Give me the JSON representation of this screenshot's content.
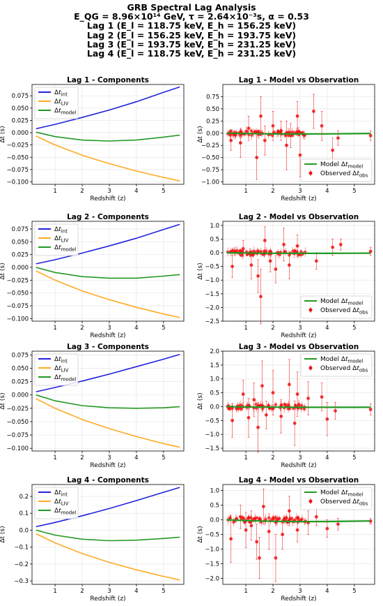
{
  "suptitle": {
    "line1": "GRB Spectral Lag Analysis",
    "line2": "E_QG = 8.96×10¹⁴ GeV, τ = 2.64×10⁻³s, α = 0.53",
    "line3": "Lag 1 (E_l = 118.75 keV, E_h = 156.25 keV)",
    "line4": "Lag 2 (E_l = 156.25 keV, E_h = 193.75 keV)",
    "line5": "Lag 3 (E_l = 193.75 keV, E_h = 231.25 keV)",
    "line6": "Lag 4 (E_l = 118.75 keV, E_h = 231.25 keV)"
  },
  "colors": {
    "int": "#2222dd",
    "liv": "#ffaa22",
    "model": "#229922",
    "obs": "#ee1111"
  },
  "chart_data": [
    {
      "type": "line",
      "title": "Lag 1 - Components",
      "xlabel": "Redshift (z)",
      "ylabel": "Δt (s)",
      "xlim": [
        0.15,
        5.75
      ],
      "ylim": [
        -0.105,
        0.098
      ],
      "xticks": [
        1,
        2,
        3,
        4,
        5
      ],
      "yticks": [
        -0.1,
        -0.075,
        -0.05,
        -0.025,
        0.0,
        0.025,
        0.05,
        0.075
      ],
      "ytick_labels": [
        "−0.100",
        "−0.075",
        "−0.050",
        "−0.025",
        "0.000",
        "0.025",
        "0.050",
        "0.075"
      ],
      "grid": true,
      "legend": "upper-left",
      "x": [
        0.3,
        1.0,
        2.0,
        3.0,
        4.0,
        5.0,
        5.6
      ],
      "series": [
        {
          "name": "Δt_int",
          "color": "int",
          "values": [
            0.008,
            0.017,
            0.031,
            0.046,
            0.063,
            0.082,
            0.093
          ]
        },
        {
          "name": "Δt_LIV",
          "color": "liv",
          "values": [
            -0.007,
            -0.025,
            -0.046,
            -0.063,
            -0.078,
            -0.091,
            -0.098
          ]
        },
        {
          "name": "Δt_model",
          "color": "model",
          "values": [
            0.001,
            -0.008,
            -0.015,
            -0.017,
            -0.015,
            -0.009,
            -0.005
          ]
        }
      ]
    },
    {
      "type": "scatter",
      "title": "Lag 1 - Model vs Observation",
      "xlabel": "Redshift (z)",
      "ylabel": "Δt (s)",
      "xlim": [
        0.15,
        5.75
      ],
      "ylim": [
        -1.05,
        1.0
      ],
      "xticks": [
        1,
        2,
        3,
        4,
        5
      ],
      "yticks": [
        -1.0,
        -0.75,
        -0.5,
        -0.25,
        0.0,
        0.25,
        0.5,
        0.75
      ],
      "ytick_labels": [
        "−1.00",
        "−0.75",
        "−0.50",
        "−0.25",
        "0.00",
        "0.25",
        "0.50",
        "0.75"
      ],
      "grid": true,
      "legend": "lower-right",
      "model": {
        "name": "Model Δt_model",
        "x": [
          0.3,
          1.0,
          2.0,
          3.0,
          4.0,
          5.0,
          5.6
        ],
        "values": [
          0.001,
          -0.008,
          -0.015,
          -0.017,
          -0.015,
          -0.009,
          -0.005
        ]
      },
      "observed": {
        "name": "Observed Δt_obs",
        "seed": 11,
        "x": [
          0.45,
          0.8,
          1.1,
          1.4,
          1.55,
          1.7,
          2.0,
          2.3,
          2.5,
          2.65,
          2.9,
          3.0,
          3.5,
          3.8,
          4.2,
          4.4,
          5.6
        ],
        "y": [
          -0.15,
          -0.2,
          0.1,
          -0.5,
          0.35,
          -0.15,
          0.15,
          0.05,
          -0.25,
          -0.05,
          0.35,
          -0.45,
          0.45,
          0.15,
          -0.35,
          -0.1,
          -0.05
        ],
        "err": [
          0.2,
          0.3,
          0.25,
          0.45,
          0.4,
          0.3,
          0.3,
          0.2,
          0.5,
          0.25,
          0.3,
          0.45,
          0.35,
          0.3,
          0.25,
          0.15,
          0.1
        ]
      }
    },
    {
      "type": "line",
      "title": "Lag 2 - Components",
      "xlabel": "Redshift (z)",
      "ylabel": "Δt (s)",
      "xlim": [
        0.15,
        5.75
      ],
      "ylim": [
        -0.105,
        0.09
      ],
      "xticks": [
        1,
        2,
        3,
        4,
        5
      ],
      "yticks": [
        -0.1,
        -0.075,
        -0.05,
        -0.025,
        0.0,
        0.025,
        0.05,
        0.075
      ],
      "ytick_labels": [
        "−0.100",
        "−0.075",
        "−0.050",
        "−0.025",
        "0.000",
        "0.025",
        "0.050",
        "0.075"
      ],
      "grid": true,
      "legend": "upper-left",
      "x": [
        0.3,
        1.0,
        2.0,
        3.0,
        4.0,
        5.0,
        5.6
      ],
      "series": [
        {
          "name": "Δt_int",
          "color": "int",
          "values": [
            0.007,
            0.015,
            0.028,
            0.042,
            0.057,
            0.074,
            0.084
          ]
        },
        {
          "name": "Δt_LIV",
          "color": "liv",
          "values": [
            -0.007,
            -0.025,
            -0.046,
            -0.063,
            -0.078,
            -0.091,
            -0.098
          ]
        },
        {
          "name": "Δt_model",
          "color": "model",
          "values": [
            0.0,
            -0.01,
            -0.018,
            -0.021,
            -0.021,
            -0.017,
            -0.014
          ]
        }
      ]
    },
    {
      "type": "scatter",
      "title": "Lag 2 - Model vs Observation",
      "xlabel": "Redshift (z)",
      "ylabel": "Δt (s)",
      "xlim": [
        0.15,
        5.75
      ],
      "ylim": [
        -2.5,
        1.15
      ],
      "xticks": [
        1,
        2,
        3,
        4,
        5
      ],
      "yticks": [
        -2.5,
        -2.0,
        -1.5,
        -1.0,
        -0.5,
        0.0,
        0.5,
        1.0
      ],
      "ytick_labels": [
        "−2.5",
        "−2.0",
        "−1.5",
        "−1.0",
        "−0.5",
        "0.0",
        "0.5",
        "1.0"
      ],
      "grid": true,
      "legend": "lower-right",
      "model": {
        "name": "Model Δt_model",
        "x": [
          0.3,
          1.0,
          2.0,
          3.0,
          4.0,
          5.0,
          5.6
        ],
        "values": [
          0.0,
          -0.01,
          -0.018,
          -0.021,
          -0.021,
          -0.017,
          -0.014
        ]
      },
      "observed": {
        "name": "Observed Δt_obs",
        "seed": 23,
        "x": [
          0.5,
          0.9,
          1.2,
          1.45,
          1.55,
          1.7,
          1.9,
          2.1,
          2.4,
          2.6,
          2.9,
          3.6,
          4.2,
          4.5,
          5.6
        ],
        "y": [
          -0.5,
          0.15,
          -0.45,
          -0.85,
          -1.6,
          0.45,
          -0.3,
          -0.6,
          0.3,
          -0.45,
          0.25,
          -0.3,
          0.2,
          0.3,
          0.05
        ],
        "err": [
          0.4,
          0.3,
          0.5,
          0.6,
          1.0,
          0.5,
          0.4,
          0.5,
          0.6,
          0.5,
          0.4,
          0.3,
          0.3,
          0.2,
          0.15
        ]
      }
    },
    {
      "type": "line",
      "title": "Lag 3 - Components",
      "xlabel": "Redshift (z)",
      "ylabel": "Δt (s)",
      "xlim": [
        0.15,
        5.75
      ],
      "ylim": [
        -0.105,
        0.082
      ],
      "xticks": [
        1,
        2,
        3,
        4,
        5
      ],
      "yticks": [
        -0.1,
        -0.075,
        -0.05,
        -0.025,
        0.0,
        0.025,
        0.05,
        0.075
      ],
      "ytick_labels": [
        "−0.100",
        "−0.075",
        "−0.050",
        "−0.025",
        "0.000",
        "0.025",
        "0.050",
        "0.075"
      ],
      "grid": true,
      "legend": "upper-left",
      "x": [
        0.3,
        1.0,
        2.0,
        3.0,
        4.0,
        5.0,
        5.6
      ],
      "series": [
        {
          "name": "Δt_int",
          "color": "int",
          "values": [
            0.006,
            0.014,
            0.026,
            0.039,
            0.053,
            0.067,
            0.076
          ]
        },
        {
          "name": "Δt_LIV",
          "color": "liv",
          "values": [
            -0.007,
            -0.025,
            -0.046,
            -0.063,
            -0.078,
            -0.091,
            -0.098
          ]
        },
        {
          "name": "Δt_model",
          "color": "model",
          "values": [
            0.0,
            -0.011,
            -0.02,
            -0.024,
            -0.025,
            -0.024,
            -0.022
          ]
        }
      ]
    },
    {
      "type": "scatter",
      "title": "Lag 3 - Model vs Observation",
      "xlabel": "Redshift (z)",
      "ylabel": "Δt (s)",
      "xlim": [
        0.15,
        5.75
      ],
      "ylim": [
        -1.6,
        2.0
      ],
      "xticks": [
        1,
        2,
        3,
        4,
        5
      ],
      "yticks": [
        -1.5,
        -1.0,
        -0.5,
        0.0,
        0.5,
        1.0,
        1.5,
        2.0
      ],
      "ytick_labels": [
        "−1.5",
        "−1.0",
        "−0.5",
        "0.0",
        "0.5",
        "1.0",
        "1.5",
        "2.0"
      ],
      "grid": true,
      "legend": "upper-right",
      "model": {
        "name": "Model Δt_model",
        "x": [
          0.3,
          1.0,
          2.0,
          3.0,
          4.0,
          5.0,
          5.6
        ],
        "values": [
          0.0,
          -0.011,
          -0.02,
          -0.024,
          -0.025,
          -0.024,
          -0.022
        ]
      },
      "observed": {
        "name": "Observed Δt_obs",
        "seed": 37,
        "x": [
          0.5,
          0.9,
          1.1,
          1.3,
          1.45,
          1.6,
          1.75,
          2.0,
          2.3,
          2.6,
          2.8,
          2.9,
          3.3,
          3.8,
          4.0,
          4.3,
          5.6
        ],
        "y": [
          -0.5,
          0.45,
          -0.4,
          0.25,
          -0.75,
          0.75,
          -0.3,
          0.5,
          -0.35,
          0.8,
          -0.6,
          0.45,
          0.3,
          0.35,
          -0.45,
          -0.15,
          -0.1
        ],
        "err": [
          0.6,
          0.5,
          0.7,
          0.6,
          0.9,
          0.9,
          0.5,
          0.8,
          0.6,
          0.9,
          0.8,
          0.8,
          0.6,
          0.5,
          0.6,
          0.3,
          0.2
        ]
      }
    },
    {
      "type": "line",
      "title": "Lag 4 - Components",
      "xlabel": "Redshift (z)",
      "ylabel": "Δt (s)",
      "xlim": [
        0.15,
        5.75
      ],
      "ylim": [
        -0.32,
        0.27
      ],
      "xticks": [
        1,
        2,
        3,
        4,
        5
      ],
      "yticks": [
        -0.3,
        -0.2,
        -0.1,
        0.0,
        0.1,
        0.2
      ],
      "ytick_labels": [
        "−0.3",
        "−0.2",
        "−0.1",
        "0.0",
        "0.1",
        "0.2"
      ],
      "grid": true,
      "legend": "upper-left",
      "x": [
        0.3,
        1.0,
        2.0,
        3.0,
        4.0,
        5.0,
        5.6
      ],
      "series": [
        {
          "name": "Δt_int",
          "color": "int",
          "values": [
            0.021,
            0.046,
            0.085,
            0.128,
            0.175,
            0.224,
            0.253
          ]
        },
        {
          "name": "Δt_LIV",
          "color": "liv",
          "values": [
            -0.021,
            -0.075,
            -0.138,
            -0.19,
            -0.234,
            -0.273,
            -0.294
          ]
        },
        {
          "name": "Δt_model",
          "color": "model",
          "values": [
            0.0,
            -0.029,
            -0.053,
            -0.062,
            -0.059,
            -0.049,
            -0.041
          ]
        }
      ]
    },
    {
      "type": "scatter",
      "title": "Lag 4 - Model vs Observation",
      "xlabel": "Redshift (z)",
      "ylabel": "Δt (s)",
      "xlim": [
        0.15,
        5.75
      ],
      "ylim": [
        -2.2,
        1.2
      ],
      "xticks": [
        1,
        2,
        3,
        4,
        5
      ],
      "yticks": [
        -2.0,
        -1.5,
        -1.0,
        -0.5,
        0.0,
        0.5,
        1.0
      ],
      "ytick_labels": [
        "−2.0",
        "−1.5",
        "−1.0",
        "−0.5",
        "0.0",
        "0.5",
        "1.0"
      ],
      "grid": true,
      "legend": "upper-right",
      "model": {
        "name": "Model Δt_model",
        "x": [
          0.3,
          1.0,
          2.0,
          3.0,
          4.0,
          5.0,
          5.6
        ],
        "values": [
          0.0,
          -0.029,
          -0.053,
          -0.062,
          -0.059,
          -0.049,
          -0.041
        ]
      },
      "observed": {
        "name": "Observed Δt_obs",
        "seed": 51,
        "x": [
          0.45,
          0.8,
          1.0,
          1.2,
          1.4,
          1.5,
          1.65,
          1.85,
          2.1,
          2.35,
          2.6,
          2.9,
          3.3,
          3.6,
          4.0,
          4.4,
          5.6
        ],
        "y": [
          -0.65,
          0.1,
          -0.35,
          -0.2,
          -0.75,
          -1.3,
          0.45,
          -0.4,
          -1.3,
          -0.5,
          0.3,
          -0.35,
          -0.1,
          0.1,
          -0.3,
          -0.15,
          -0.05
        ],
        "err": [
          0.8,
          0.4,
          0.6,
          0.5,
          0.6,
          0.7,
          0.6,
          0.6,
          0.8,
          0.5,
          0.5,
          0.4,
          0.4,
          0.3,
          0.3,
          0.2,
          0.1
        ]
      }
    }
  ]
}
